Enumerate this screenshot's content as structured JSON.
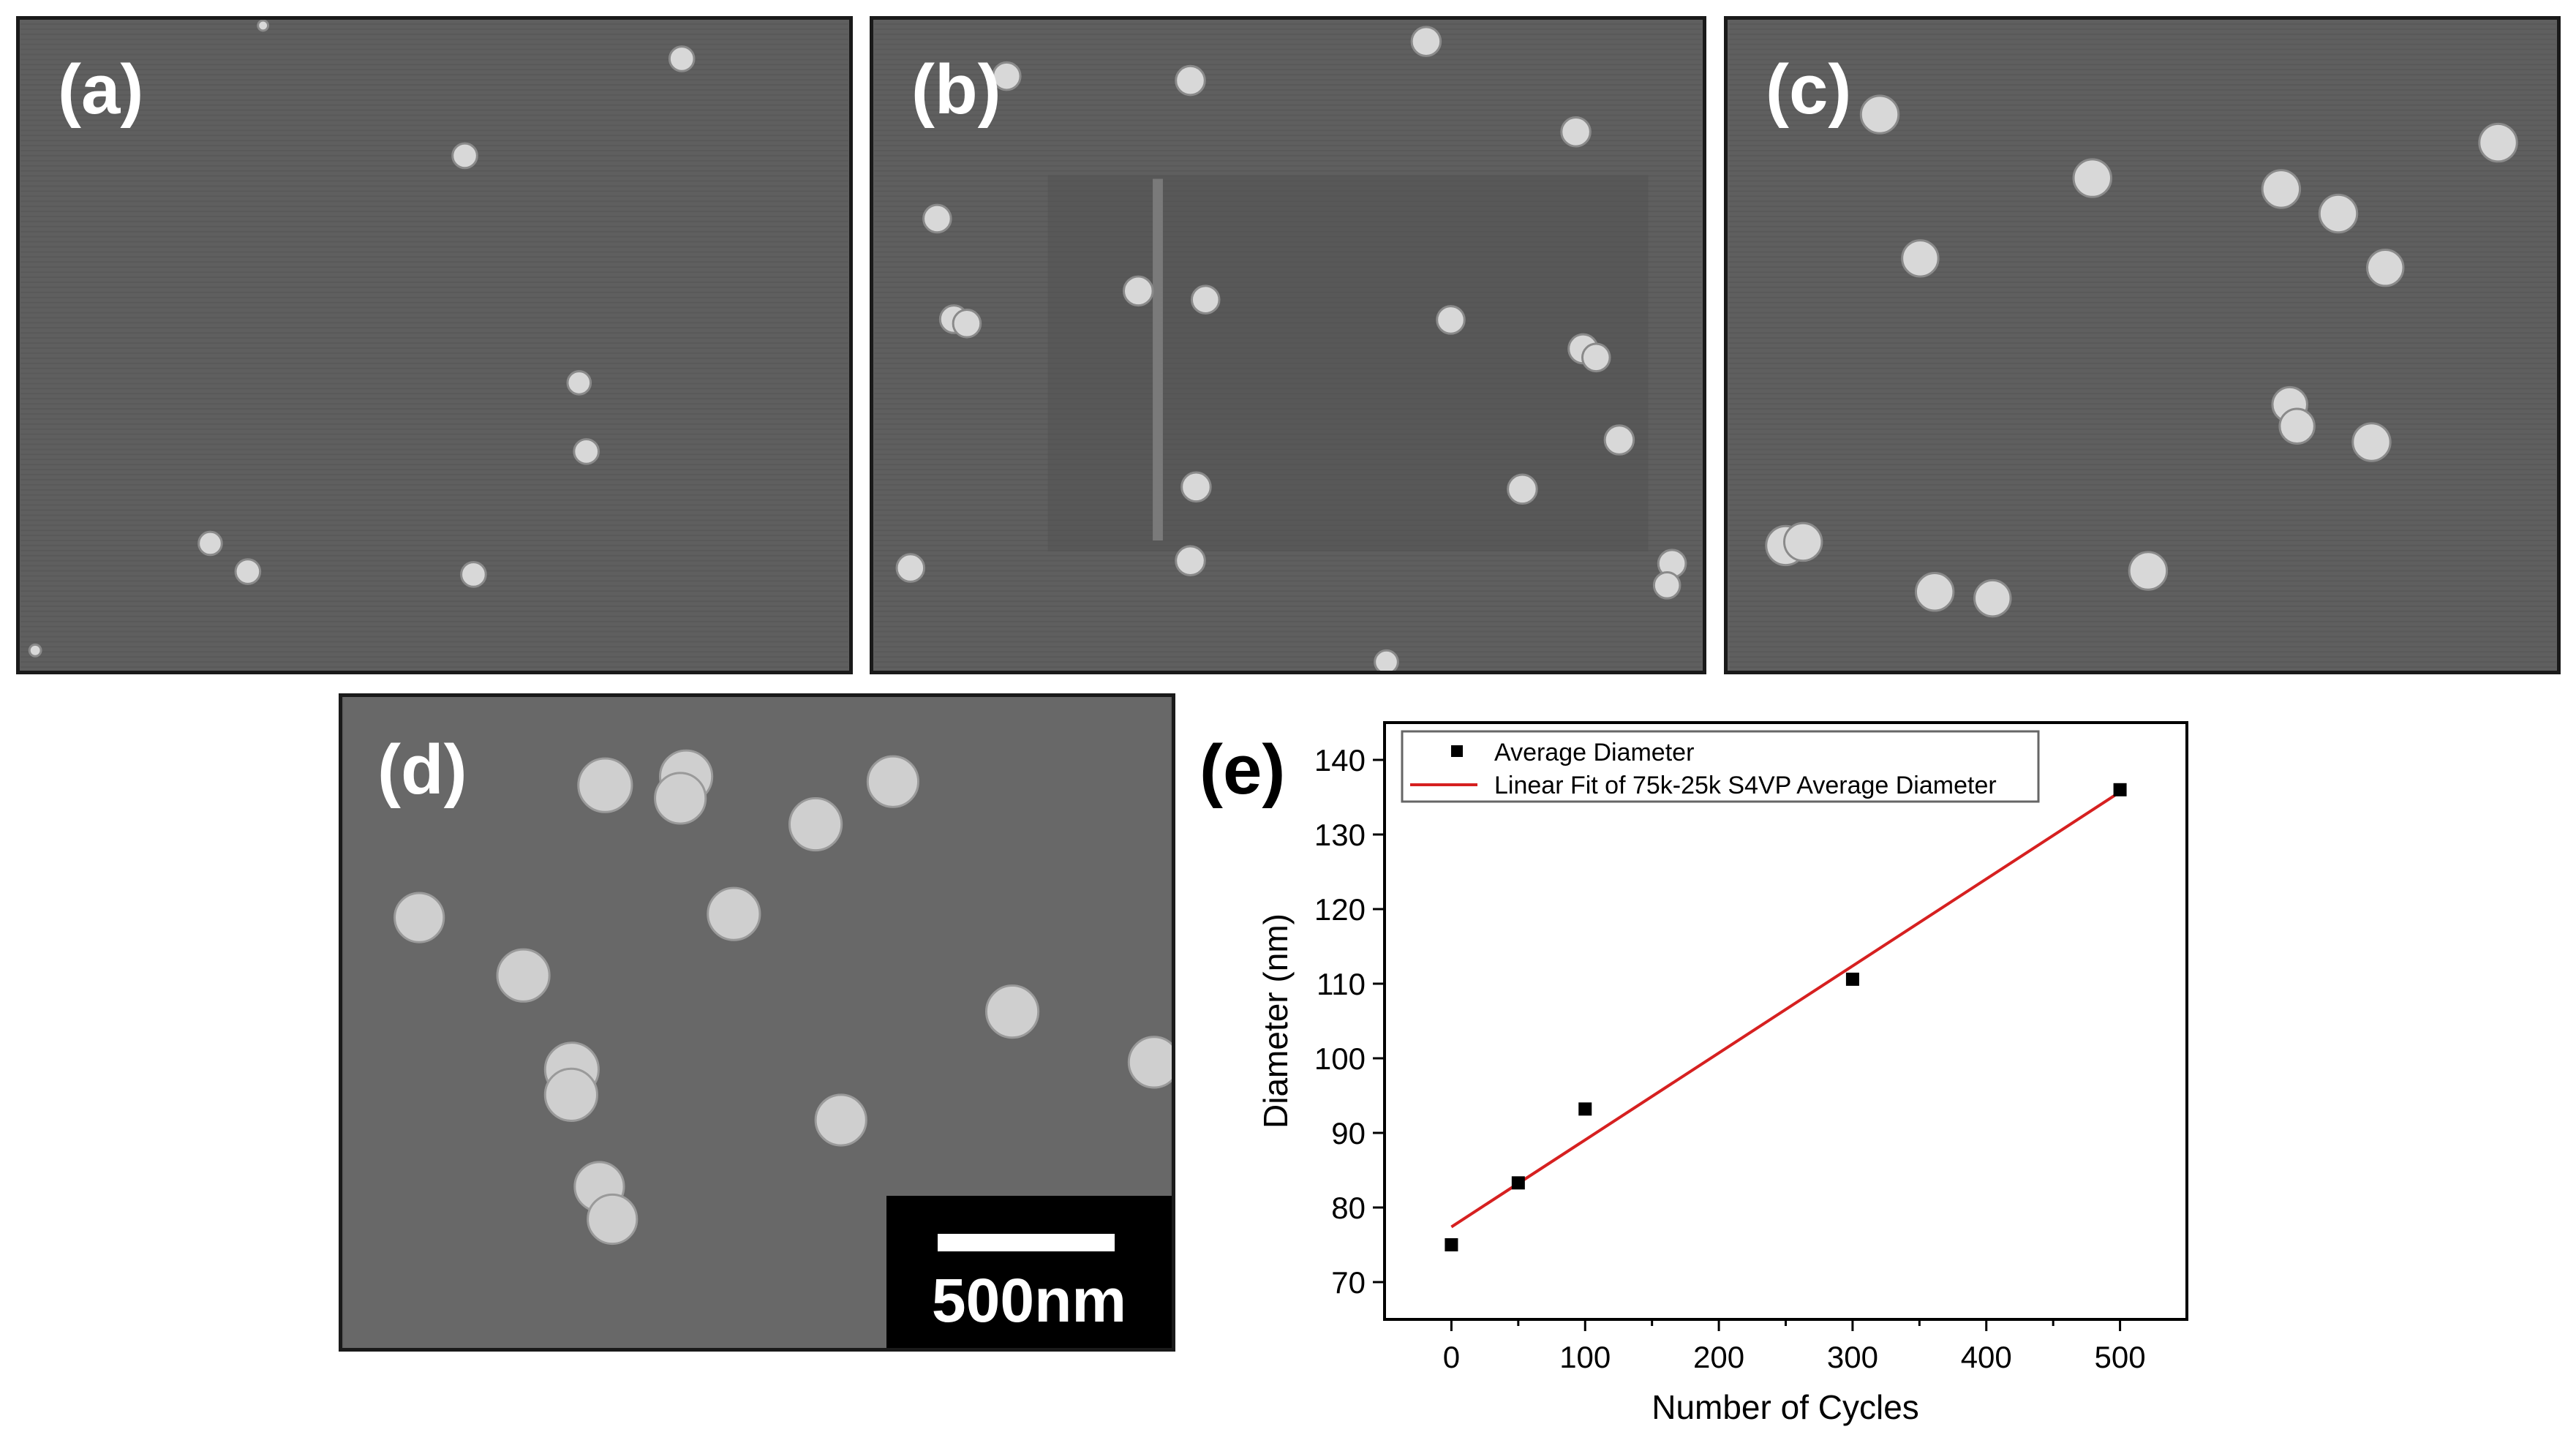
{
  "figure": {
    "panels": [
      {
        "label": "(a)"
      },
      {
        "label": "(b)"
      },
      {
        "label": "(c)"
      },
      {
        "label": "(d)"
      }
    ],
    "scale_bar_label": "500nm",
    "colors": {
      "sem_background": "#5f5f5f",
      "particle": "#d6d6d6",
      "fit_line": "#d62020",
      "marker": "#000000"
    }
  },
  "chart_data": {
    "panel_label": "(e)",
    "type": "scatter",
    "xlabel": "Number of Cycles",
    "ylabel": "Diameter (nm)",
    "xlim": [
      -50,
      550
    ],
    "ylim": [
      65,
      145
    ],
    "xticks": [
      0,
      100,
      200,
      300,
      400,
      500
    ],
    "yticks": [
      70,
      80,
      90,
      100,
      110,
      120,
      130,
      140
    ],
    "legend_position": "top",
    "series": [
      {
        "name": "Average Diameter",
        "type": "scatter",
        "marker": "square",
        "x": [
          0,
          50,
          100,
          300,
          500
        ],
        "y": [
          75,
          83.3,
          93.2,
          110.6,
          136
        ]
      },
      {
        "name": "Linear Fit of 75k-25k S4VP Average Diameter",
        "type": "line",
        "x": [
          0,
          500
        ],
        "y": [
          77.4,
          135.7
        ]
      }
    ]
  }
}
